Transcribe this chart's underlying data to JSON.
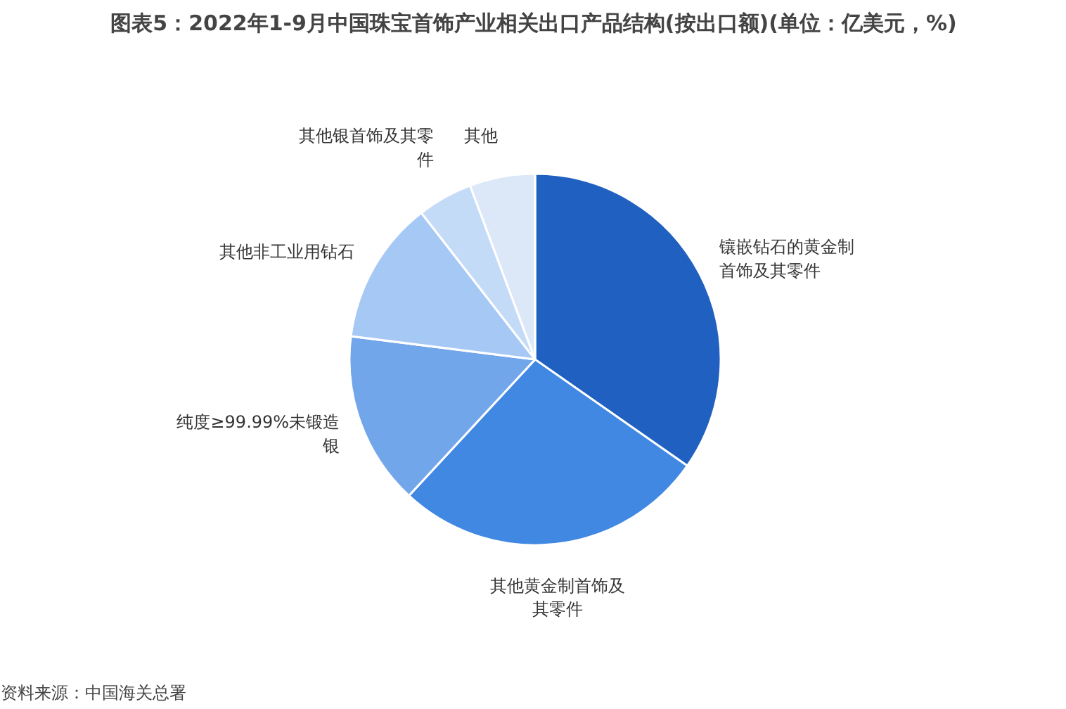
{
  "chart_data": {
    "type": "pie",
    "title": "图表5：2022年1-9月中国珠宝首饰产业相关出口产品结构(按出口额)(单位：亿美元，%)",
    "categories": [
      "镶嵌钻石的黄金制首饰及其零件",
      "其他黄金制首饰及其零件",
      "纯度≥99.99%未锻造银",
      "其他非工业用钻石",
      "其他银首饰及其零件",
      "其他"
    ],
    "values": [
      34.7,
      27.2,
      15.1,
      12.5,
      4.8,
      5.7
    ],
    "colors": [
      "#1f60c0",
      "#4088e2",
      "#72a6ea",
      "#a6c8f5",
      "#c4dbf7",
      "#dce8f8"
    ],
    "annotations": [
      "资料来源：中国海关总署"
    ]
  }
}
